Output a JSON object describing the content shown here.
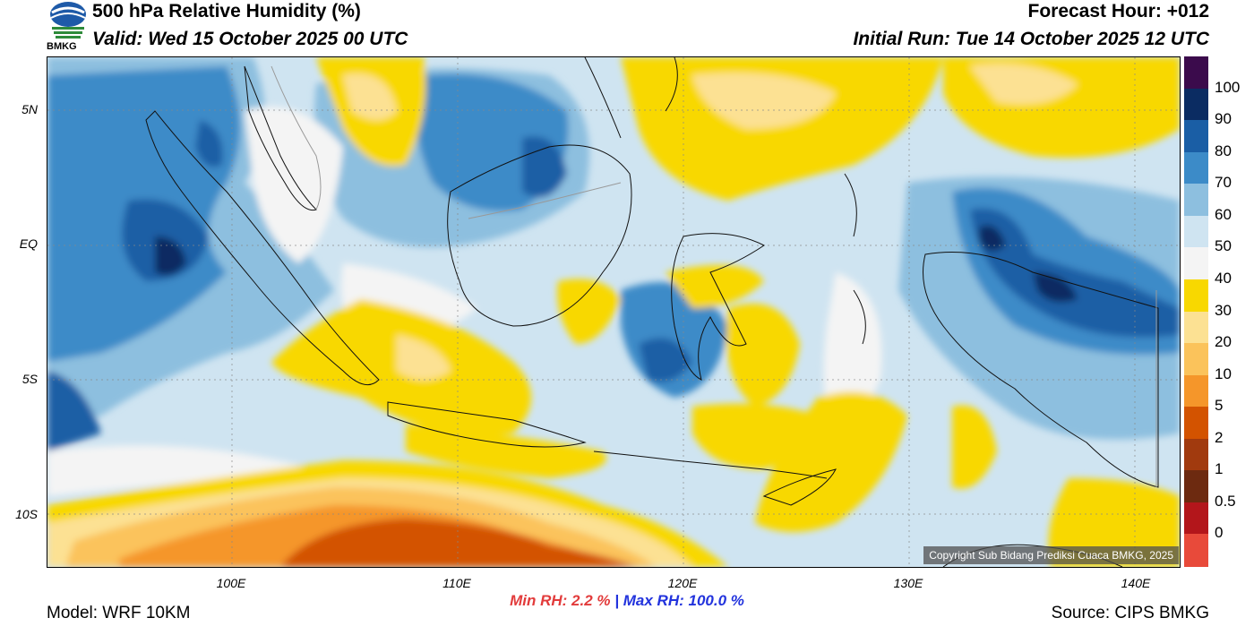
{
  "header": {
    "title": "500 hPa Relative Humidity (%)",
    "valid": "Valid: Wed 15 October 2025 00 UTC",
    "forecast_hour": "Forecast Hour: +012",
    "initial_run": "Initial Run: Tue 14 October 2025 12 UTC",
    "logo_text": "BMKG"
  },
  "map": {
    "lat_labels": [
      "5N",
      "EQ",
      "5S",
      "10S"
    ],
    "lon_labels": [
      "100E",
      "110E",
      "120E",
      "130E",
      "140E"
    ],
    "copyright": "Copyright Sub Bidang Prediksi Cuaca BMKG, 2025"
  },
  "colorbar": {
    "labels": [
      "100",
      "90",
      "80",
      "70",
      "60",
      "50",
      "40",
      "30",
      "20",
      "10",
      "5",
      "2",
      "1",
      "0.5",
      "0"
    ],
    "colors": [
      "#3b0b4c",
      "#0b2c62",
      "#1a5ea5",
      "#3c8bc8",
      "#8dbfdf",
      "#cfe4f1",
      "#f4f4f4",
      "#f8d800",
      "#fce193",
      "#fbc35b",
      "#f5962a",
      "#d35300",
      "#a13a0e",
      "#6d2a10",
      "#b3161b",
      "#e84a3a"
    ]
  },
  "stats": {
    "min_label": "Min RH:",
    "min_value": "2.2 %",
    "separator": "|",
    "max_label": "Max RH:",
    "max_value": "100.0 %"
  },
  "footer": {
    "model": "Model: WRF 10KM",
    "source": "Source: CIPS BMKG"
  }
}
